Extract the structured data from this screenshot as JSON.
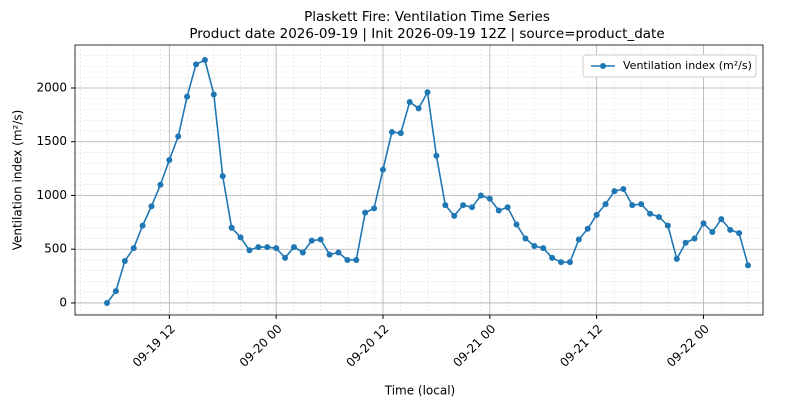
{
  "chart_data": {
    "type": "line",
    "title": "Plaskett Fire: Ventilation Time Series",
    "subtitle": "Product date 2026-09-19 | Init 2026-09-19 12Z | source=product_date",
    "x_label": "Time (local)",
    "y_label": "Ventilation index (m²/s)",
    "x": [
      "09-19 05",
      "09-19 06",
      "09-19 07",
      "09-19 08",
      "09-19 09",
      "09-19 10",
      "09-19 11",
      "09-19 12",
      "09-19 13",
      "09-19 14",
      "09-19 15",
      "09-19 16",
      "09-19 17",
      "09-19 18",
      "09-19 19",
      "09-19 20",
      "09-19 21",
      "09-19 22",
      "09-19 23",
      "09-20 00",
      "09-20 01",
      "09-20 02",
      "09-20 03",
      "09-20 04",
      "09-20 05",
      "09-20 06",
      "09-20 07",
      "09-20 08",
      "09-20 09",
      "09-20 10",
      "09-20 11",
      "09-20 12",
      "09-20 13",
      "09-20 14",
      "09-20 15",
      "09-20 16",
      "09-20 17",
      "09-20 18",
      "09-20 19",
      "09-20 20",
      "09-20 21",
      "09-20 22",
      "09-20 23",
      "09-21 00",
      "09-21 01",
      "09-21 02",
      "09-21 03",
      "09-21 04",
      "09-21 05",
      "09-21 06",
      "09-21 07",
      "09-21 08",
      "09-21 09",
      "09-21 10",
      "09-21 11",
      "09-21 12",
      "09-21 13",
      "09-21 14",
      "09-21 15",
      "09-21 16",
      "09-21 17",
      "09-21 18",
      "09-21 19",
      "09-21 20",
      "09-21 21",
      "09-21 22",
      "09-21 23",
      "09-22 00",
      "09-22 01",
      "09-22 02",
      "09-22 03",
      "09-22 04",
      "09-22 05"
    ],
    "series": [
      {
        "name": "Ventilation index (m²/s)",
        "color": "#1f77b4",
        "values": [
          0,
          110,
          390,
          510,
          720,
          900,
          1100,
          1330,
          1550,
          1920,
          2220,
          2260,
          1940,
          1180,
          700,
          610,
          490,
          520,
          520,
          510,
          420,
          520,
          470,
          580,
          590,
          450,
          470,
          400,
          400,
          840,
          880,
          1240,
          1590,
          1580,
          1870,
          1810,
          1960,
          1370,
          910,
          810,
          910,
          890,
          1000,
          970,
          860,
          890,
          730,
          600,
          530,
          510,
          420,
          380,
          380,
          590,
          690,
          820,
          920,
          1040,
          1060,
          910,
          920,
          830,
          800,
          720,
          410,
          560,
          600,
          740,
          660,
          780,
          680,
          650,
          350
        ]
      }
    ],
    "xticks": [
      "09-19 12",
      "09-20 00",
      "09-20 12",
      "09-21 00",
      "09-21 12",
      "09-22 00"
    ],
    "ylim": [
      -112,
      2400
    ],
    "yticks": [
      0,
      500,
      1000,
      1500,
      2000
    ],
    "grid": true,
    "legend": "upper right"
  }
}
